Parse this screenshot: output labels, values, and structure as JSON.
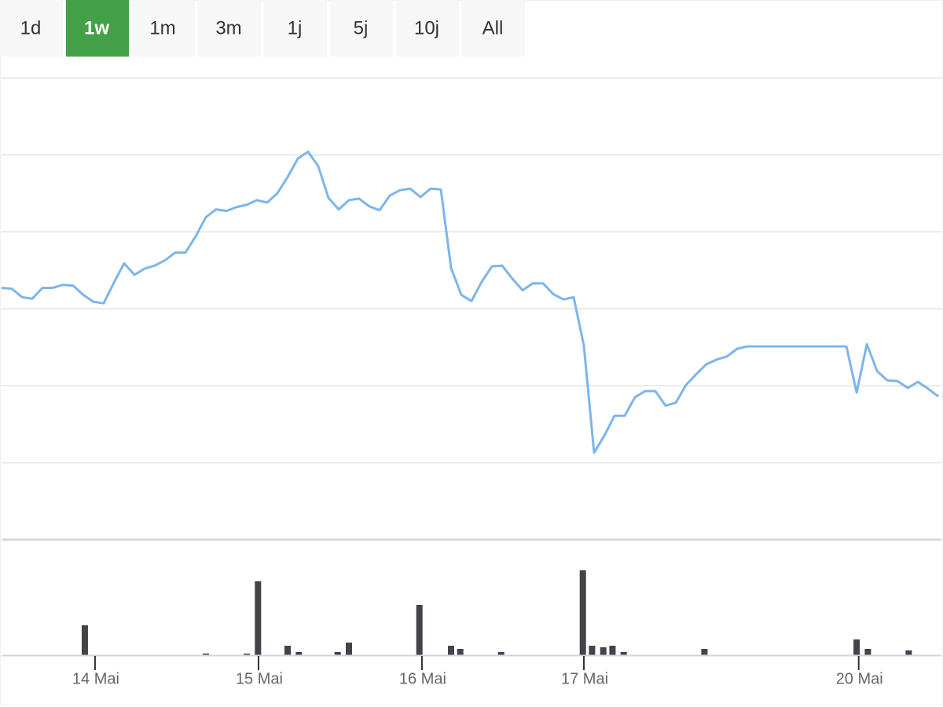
{
  "range_selector": {
    "buttons": [
      "1d",
      "1w",
      "1m",
      "3m",
      "1j",
      "5j",
      "10j",
      "All"
    ],
    "selected": 1
  },
  "chart_data": [
    {
      "type": "line",
      "x": [
        0,
        1,
        2,
        3,
        4,
        5,
        6,
        7,
        8,
        9,
        10,
        11,
        12,
        13,
        14,
        15,
        16,
        17,
        18,
        19,
        20,
        21,
        22,
        23,
        24,
        25,
        26,
        27,
        28,
        29,
        30,
        31,
        32,
        33,
        34,
        35,
        36,
        37,
        38,
        39,
        40,
        41,
        42,
        43,
        44,
        45,
        46,
        47,
        48,
        49,
        50,
        51,
        52,
        53,
        54,
        55,
        56,
        57,
        58,
        59,
        60,
        61,
        62,
        63,
        64,
        65,
        66,
        67,
        68,
        69,
        70,
        71,
        72,
        73,
        74,
        75,
        76,
        77,
        78,
        79,
        80,
        81,
        82.7,
        83.7,
        84.7,
        85.7,
        86.7,
        87.7,
        88.7,
        89.7,
        90.7,
        91.7
      ],
      "values": [
        3.27,
        3.26,
        3.15,
        3.13,
        3.27,
        3.27,
        3.31,
        3.3,
        3.18,
        3.09,
        3.07,
        3.34,
        3.59,
        3.44,
        3.52,
        3.56,
        3.63,
        3.73,
        3.73,
        3.94,
        4.19,
        4.29,
        4.27,
        4.32,
        4.35,
        4.41,
        4.38,
        4.5,
        4.71,
        4.95,
        5.04,
        4.85,
        4.44,
        4.29,
        4.41,
        4.43,
        4.33,
        4.28,
        4.47,
        4.54,
        4.56,
        4.45,
        4.56,
        4.55,
        3.53,
        3.18,
        3.1,
        3.35,
        3.55,
        3.56,
        3.39,
        3.24,
        3.33,
        3.33,
        3.19,
        3.12,
        3.15,
        2.52,
        1.13,
        1.35,
        1.61,
        1.61,
        1.85,
        1.93,
        1.93,
        1.74,
        1.78,
        2.01,
        2.15,
        2.28,
        2.34,
        2.38,
        2.48,
        2.51,
        2.51,
        2.51,
        2.51,
        2.51,
        2.51,
        2.51,
        2.51,
        2.51,
        2.51,
        1.91,
        2.54,
        2.19,
        2.07,
        2.06,
        1.97,
        2.05,
        1.96,
        1.86
      ],
      "color": "#7cb5ec",
      "xlim": [
        0,
        92
      ],
      "ylim": [
        0,
        6
      ],
      "yticks": [
        0,
        1,
        2,
        3,
        4,
        5,
        6
      ],
      "grid": true
    },
    {
      "type": "bar",
      "x": [
        8.15,
        20,
        24,
        25.1,
        28,
        29.1,
        32.9,
        34,
        40.9,
        44,
        44.9,
        48.9,
        56.9,
        57.8,
        58.9,
        59.8,
        60.9,
        68.8,
        83.7,
        84.8,
        88.8
      ],
      "values": [
        38,
        2,
        2,
        94,
        12,
        4,
        4,
        16,
        64,
        12,
        8,
        4,
        108,
        12,
        10,
        12,
        4,
        8,
        20,
        8,
        6
      ],
      "color": "#434348",
      "xlim": [
        0,
        92
      ],
      "ylim": [
        0,
        146
      ],
      "xticks": [
        {
          "value": 9.15,
          "label": "14 Mai"
        },
        {
          "value": 25.15,
          "label": "15 Mai"
        },
        {
          "value": 41.15,
          "label": "16 Mai"
        },
        {
          "value": 57,
          "label": "17 Mai"
        },
        {
          "value": 83.9,
          "label": "20 Mai"
        }
      ]
    }
  ]
}
